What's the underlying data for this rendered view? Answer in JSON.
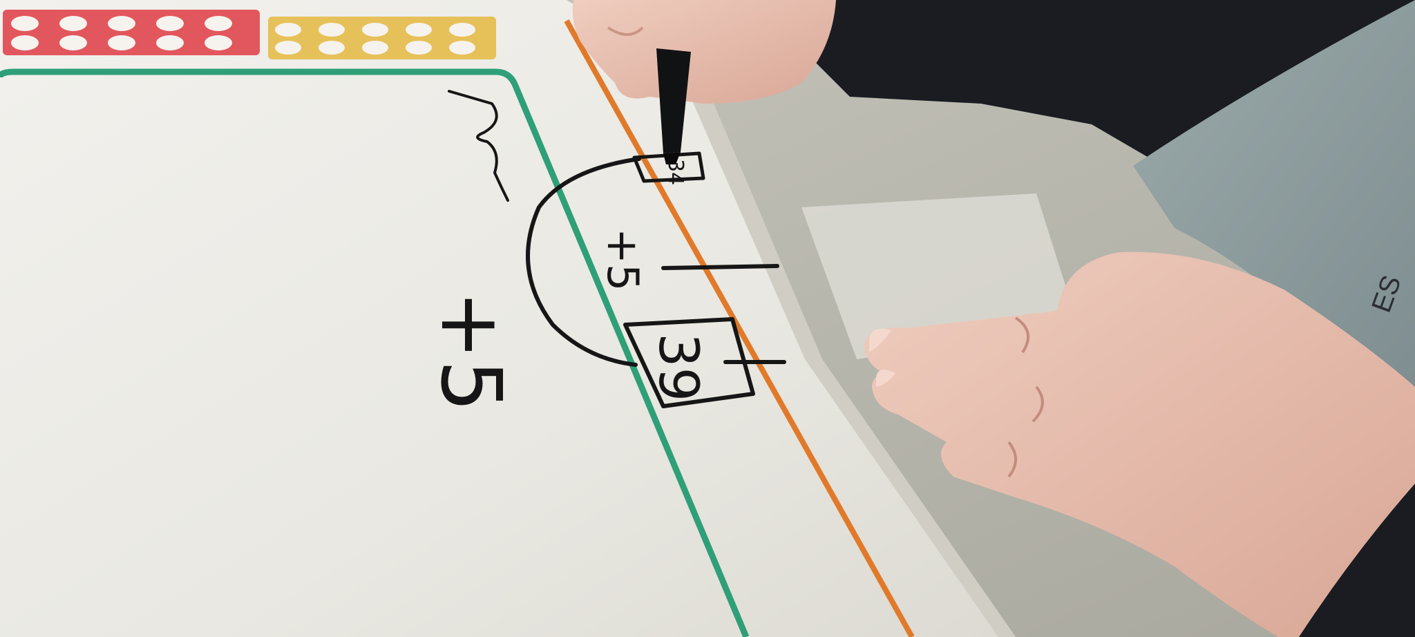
{
  "scene": {
    "colors": {
      "board": "#ecebe6",
      "board_shade": "#dedcd4",
      "desk": "#bdbcb2",
      "frame_red": "#e2575d",
      "frame_yellow": "#e6c15a",
      "green_line": "#2f9f78",
      "orange_line": "#e07a2a",
      "ink": "#161616",
      "skin": "#e7bfb0",
      "sleeve_dark": "#1a1c22",
      "sweater_grey": "#8f9ea0"
    },
    "ten_frames": [
      {
        "name": "red-ten-frame",
        "color": "#e2575d",
        "filled": 10
      },
      {
        "name": "yellow-ten-frame",
        "color": "#e6c15a",
        "filled": 10
      }
    ],
    "board_writing": {
      "operation_left": "+5",
      "start_number": "34",
      "jump_label": "+5",
      "end_number": "39"
    },
    "shirt_text": "ES"
  }
}
